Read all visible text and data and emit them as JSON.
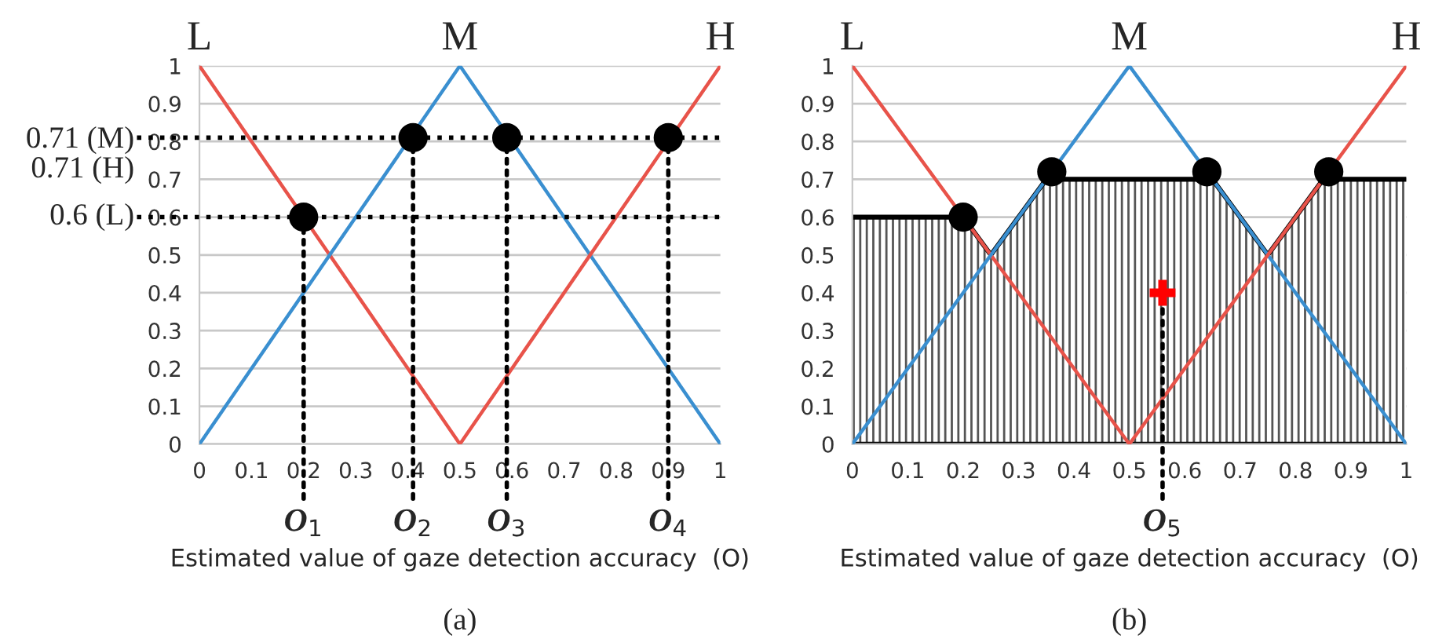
{
  "chart_data": [
    {
      "type": "line",
      "title": "(a)",
      "xlabel": "Estimated value of gaze detection accuracy  (O)",
      "xlim": [
        0,
        1
      ],
      "ylim": [
        0,
        1
      ],
      "xticks": [
        0,
        0.1,
        0.2,
        0.3,
        0.4,
        0.5,
        0.6,
        0.7,
        0.8,
        0.9,
        1
      ],
      "yticks": [
        0,
        0.1,
        0.2,
        0.3,
        0.4,
        0.5,
        0.6,
        0.7,
        0.8,
        0.9,
        1
      ],
      "grid": "y",
      "series": [
        {
          "name": "L",
          "color": "#e8534a",
          "x": [
            0,
            0.5
          ],
          "values": [
            1,
            0
          ]
        },
        {
          "name": "M",
          "color": "#3a8fd0",
          "x": [
            0,
            0.5,
            1
          ],
          "values": [
            0,
            1,
            0
          ]
        },
        {
          "name": "H",
          "color": "#e8534a",
          "x": [
            0.5,
            1
          ],
          "values": [
            0,
            1
          ]
        },
        {
          "type": "scatter",
          "color": "#000000",
          "marker": "circle",
          "x": [
            0.2,
            0.41,
            0.59,
            0.9
          ],
          "values": [
            0.6,
            0.81,
            0.81,
            0.81
          ]
        }
      ],
      "ref_lines": [
        {
          "axis": "y",
          "value": 0.81,
          "label": "0.71 (M)\n0.71 (H)",
          "color": "#000000",
          "line_style": "dotted"
        },
        {
          "axis": "y",
          "value": 0.6,
          "label": "0.6 (L)",
          "color": "#000000",
          "line_style": "dotted"
        }
      ],
      "annotations": [
        {
          "text": "O$_{1}$",
          "x": 0.2,
          "y": 0.6
        },
        {
          "text": "O$_{2}$",
          "x": 0.41,
          "y": 0.81
        },
        {
          "text": "O$_{3}$",
          "x": 0.59,
          "y": 0.81
        },
        {
          "text": "O$_{4}$",
          "x": 0.9,
          "y": 0.81
        }
      ]
    },
    {
      "type": "line",
      "title": "(b)",
      "xlabel": "Estimated value of gaze detection accuracy  (O)",
      "xlim": [
        0,
        1
      ],
      "ylim": [
        0,
        1
      ],
      "xticks": [
        0,
        0.1,
        0.2,
        0.3,
        0.4,
        0.5,
        0.6,
        0.7,
        0.8,
        0.9,
        1
      ],
      "yticks": [
        0,
        0.1,
        0.2,
        0.3,
        0.4,
        0.5,
        0.6,
        0.7,
        0.8,
        0.9,
        1
      ],
      "grid": "y",
      "series": [
        {
          "type": "area",
          "color": "#000000",
          "x": [
            0,
            0.2,
            0.25,
            0.35,
            0.65,
            0.75,
            0.85,
            1
          ],
          "values": [
            0.6,
            0.6,
            0.5,
            0.7,
            0.7,
            0.5,
            0.7,
            0.7
          ]
        },
        {
          "name": "L",
          "color": "#e8534a",
          "x": [
            0,
            0.5
          ],
          "values": [
            1,
            0
          ]
        },
        {
          "name": "M",
          "color": "#3a8fd0",
          "x": [
            0,
            0.5,
            1
          ],
          "values": [
            0,
            1,
            0
          ]
        },
        {
          "name": "H",
          "color": "#e8534a",
          "x": [
            0.5,
            1
          ],
          "values": [
            0,
            1
          ]
        },
        {
          "type": "scatter",
          "color": "#000000",
          "marker": "circle",
          "x": [
            0.2,
            0.36,
            0.64,
            0.86
          ],
          "values": [
            0.6,
            0.72,
            0.72,
            0.72
          ]
        },
        {
          "type": "scatter",
          "color": "#ff0000",
          "marker": "cross",
          "x": [
            0.56
          ],
          "values": [
            0.4
          ]
        }
      ],
      "annotations": [
        {
          "text": "O$_{5}$",
          "x": 0.56,
          "y": 0.4
        }
      ]
    }
  ]
}
